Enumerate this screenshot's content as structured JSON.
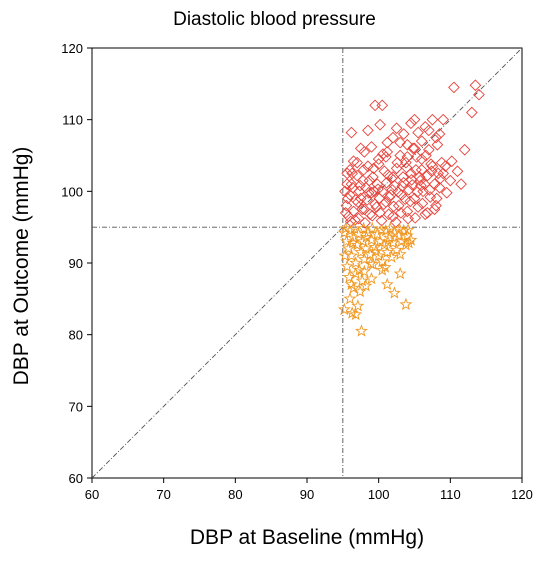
{
  "chart_data": {
    "type": "scatter",
    "title": "Diastolic blood pressure",
    "xlabel": "DBP at Baseline (mmHg)",
    "ylabel": "DBP at Outcome (mmHg)",
    "xlim": [
      60,
      120
    ],
    "ylim": [
      60,
      120
    ],
    "xticks": [
      "60",
      "70",
      "80",
      "90",
      "100",
      "110",
      "120"
    ],
    "yticks": [
      "60",
      "70",
      "80",
      "90",
      "100",
      "110",
      "120"
    ],
    "grid": false,
    "legend": "none",
    "reference_lines": {
      "vertical_x": 95,
      "horizontal_y": 95,
      "diagonal": "y = x"
    },
    "colors": {
      "above": "#e8413a",
      "below": "#f0961e",
      "reference": "#555555"
    },
    "series": [
      {
        "marker": "diamond",
        "color": "#e8413a",
        "points": [
          [
            95.5,
            98.0
          ],
          [
            95.8,
            96.5
          ],
          [
            96.0,
            99.5
          ],
          [
            96.2,
            101.0
          ],
          [
            96.5,
            97.2
          ],
          [
            96.0,
            103.0
          ],
          [
            97.0,
            104.0
          ],
          [
            95.3,
            100.0
          ],
          [
            95.6,
            102.5
          ],
          [
            96.8,
            98.8
          ],
          [
            97.2,
            96.2
          ],
          [
            97.5,
            99.0
          ],
          [
            97.8,
            101.5
          ],
          [
            98.0,
            97.5
          ],
          [
            98.2,
            100.5
          ],
          [
            98.5,
            103.5
          ],
          [
            98.8,
            96.8
          ],
          [
            99.0,
            99.8
          ],
          [
            99.2,
            102.0
          ],
          [
            99.5,
            98.2
          ],
          [
            99.8,
            101.0
          ],
          [
            100.0,
            104.5
          ],
          [
            100.2,
            97.0
          ],
          [
            100.5,
            100.0
          ],
          [
            100.8,
            102.8
          ],
          [
            101.0,
            98.5
          ],
          [
            101.2,
            105.5
          ],
          [
            101.5,
            99.2
          ],
          [
            101.8,
            101.8
          ],
          [
            102.0,
            96.5
          ],
          [
            102.2,
            100.8
          ],
          [
            102.5,
            103.2
          ],
          [
            102.8,
            98.0
          ],
          [
            103.0,
            105.0
          ],
          [
            103.2,
            99.5
          ],
          [
            103.5,
            101.2
          ],
          [
            103.8,
            104.0
          ],
          [
            104.0,
            97.2
          ],
          [
            104.2,
            100.2
          ],
          [
            104.5,
            102.5
          ],
          [
            104.8,
            106.0
          ],
          [
            105.0,
            99.0
          ],
          [
            105.2,
            103.0
          ],
          [
            105.5,
            97.8
          ],
          [
            105.8,
            101.5
          ],
          [
            106.0,
            104.5
          ],
          [
            106.2,
            100.0
          ],
          [
            106.5,
            96.8
          ],
          [
            106.8,
            102.2
          ],
          [
            107.0,
            105.8
          ],
          [
            107.2,
            99.2
          ],
          [
            107.5,
            103.5
          ],
          [
            107.8,
            101.0
          ],
          [
            108.0,
            98.0
          ],
          [
            108.2,
            106.5
          ],
          [
            108.5,
            100.5
          ],
          [
            108.8,
            104.0
          ],
          [
            109.0,
            102.5
          ],
          [
            109.5,
            99.8
          ],
          [
            110.0,
            101.5
          ],
          [
            96.2,
            108.2
          ],
          [
            97.5,
            106.0
          ],
          [
            98.5,
            108.5
          ],
          [
            99.5,
            112.0
          ],
          [
            100.2,
            109.3
          ],
          [
            100.5,
            112.0
          ],
          [
            101.2,
            106.8
          ],
          [
            102.0,
            107.5
          ],
          [
            102.5,
            108.8
          ],
          [
            103.5,
            108.0
          ],
          [
            104.0,
            106.5
          ],
          [
            104.5,
            109.5
          ],
          [
            105.0,
            110.0
          ],
          [
            105.5,
            108.2
          ],
          [
            106.0,
            107.0
          ],
          [
            106.5,
            109.0
          ],
          [
            107.0,
            108.5
          ],
          [
            107.5,
            110.0
          ],
          [
            108.0,
            107.5
          ],
          [
            108.5,
            108.0
          ],
          [
            109.0,
            110.0
          ],
          [
            110.5,
            114.5
          ],
          [
            111.0,
            102.8
          ],
          [
            112.0,
            105.8
          ],
          [
            113.0,
            111.0
          ],
          [
            113.5,
            114.8
          ],
          [
            114.0,
            113.5
          ],
          [
            96.5,
            104.2
          ],
          [
            97.0,
            102.2
          ],
          [
            98.0,
            105.5
          ],
          [
            99.0,
            106.2
          ],
          [
            100.0,
            103.8
          ],
          [
            101.0,
            104.8
          ],
          [
            102.0,
            102.0
          ],
          [
            103.0,
            106.8
          ],
          [
            104.0,
            104.8
          ],
          [
            105.0,
            106.0
          ],
          [
            106.0,
            103.0
          ],
          [
            95.4,
            97.0
          ],
          [
            95.7,
            99.0
          ],
          [
            96.1,
            95.8
          ],
          [
            96.4,
            100.5
          ],
          [
            96.7,
            96.0
          ],
          [
            97.1,
            98.5
          ],
          [
            97.4,
            100.8
          ],
          [
            97.7,
            97.5
          ],
          [
            98.1,
            95.6
          ],
          [
            98.4,
            98.8
          ],
          [
            98.7,
            101.5
          ],
          [
            99.1,
            96.6
          ],
          [
            99.4,
            100.0
          ],
          [
            99.7,
            97.8
          ],
          [
            100.1,
            99.0
          ],
          [
            100.4,
            95.9
          ],
          [
            100.7,
            98.2
          ],
          [
            101.1,
            101.2
          ],
          [
            101.4,
            96.8
          ],
          [
            101.7,
            99.5
          ],
          [
            102.1,
            97.9
          ],
          [
            102.4,
            95.7
          ],
          [
            102.7,
            99.9
          ],
          [
            103.1,
            97.0
          ],
          [
            103.4,
            102.0
          ],
          [
            103.7,
            98.9
          ],
          [
            104.1,
            96.2
          ],
          [
            104.4,
            98.6
          ],
          [
            104.7,
            100.9
          ],
          [
            105.1,
            96.3
          ],
          [
            105.4,
            99.9
          ],
          [
            105.7,
            102.0
          ],
          [
            106.1,
            98.3
          ],
          [
            106.4,
            101.0
          ],
          [
            106.8,
            97.0
          ],
          [
            107.1,
            100.2
          ],
          [
            107.4,
            102.8
          ],
          [
            107.8,
            97.5
          ],
          [
            108.1,
            99.0
          ],
          [
            108.6,
            101.8
          ],
          [
            95.6,
            101.0
          ],
          [
            96.3,
            102.5
          ],
          [
            97.3,
            100.0
          ],
          [
            97.9,
            103.0
          ],
          [
            98.6,
            99.8
          ],
          [
            99.3,
            103.2
          ],
          [
            99.9,
            100.3
          ],
          [
            100.6,
            105.2
          ],
          [
            101.3,
            102.3
          ],
          [
            101.9,
            100.2
          ],
          [
            102.6,
            104.0
          ],
          [
            103.3,
            100.7
          ],
          [
            103.9,
            103.3
          ],
          [
            104.6,
            101.6
          ],
          [
            105.3,
            104.8
          ],
          [
            105.9,
            100.8
          ],
          [
            106.6,
            105.0
          ],
          [
            107.3,
            103.8
          ],
          [
            108.3,
            102.5
          ],
          [
            109.3,
            103.5
          ],
          [
            110.2,
            104.2
          ],
          [
            111.5,
            101.0
          ]
        ]
      },
      {
        "marker": "star",
        "color": "#f0961e",
        "points": [
          [
            95.2,
            94.2
          ],
          [
            95.5,
            93.0
          ],
          [
            95.8,
            92.0
          ],
          [
            96.0,
            94.5
          ],
          [
            96.2,
            91.0
          ],
          [
            96.5,
            93.5
          ],
          [
            96.8,
            90.0
          ],
          [
            97.0,
            92.5
          ],
          [
            97.2,
            94.0
          ],
          [
            97.5,
            91.5
          ],
          [
            97.8,
            93.0
          ],
          [
            98.0,
            90.5
          ],
          [
            98.2,
            92.0
          ],
          [
            98.5,
            94.2
          ],
          [
            98.8,
            91.2
          ],
          [
            99.0,
            93.2
          ],
          [
            99.2,
            89.8
          ],
          [
            99.5,
            92.2
          ],
          [
            99.8,
            94.0
          ],
          [
            100.0,
            91.0
          ],
          [
            100.2,
            93.0
          ],
          [
            100.5,
            90.2
          ],
          [
            100.8,
            92.5
          ],
          [
            101.0,
            94.5
          ],
          [
            101.2,
            91.5
          ],
          [
            101.5,
            93.5
          ],
          [
            101.8,
            90.8
          ],
          [
            102.0,
            92.8
          ],
          [
            102.2,
            94.2
          ],
          [
            102.5,
            91.8
          ],
          [
            102.8,
            93.8
          ],
          [
            103.0,
            91.2
          ],
          [
            103.2,
            93.0
          ],
          [
            103.5,
            94.5
          ],
          [
            103.8,
            92.5
          ],
          [
            104.0,
            93.8
          ],
          [
            104.2,
            92.8
          ],
          [
            104.5,
            93.2
          ],
          [
            95.3,
            91.0
          ],
          [
            95.6,
            89.5
          ],
          [
            95.9,
            88.0
          ],
          [
            96.2,
            87.0
          ],
          [
            96.5,
            86.5
          ],
          [
            96.8,
            88.5
          ],
          [
            97.1,
            84.0
          ],
          [
            97.4,
            86.0
          ],
          [
            97.7,
            87.5
          ],
          [
            98.0,
            88.8
          ],
          [
            96.3,
            83.0
          ],
          [
            96.8,
            82.8
          ],
          [
            97.6,
            80.5
          ],
          [
            98.2,
            86.8
          ],
          [
            99.0,
            87.8
          ],
          [
            100.5,
            89.0
          ],
          [
            101.2,
            87.0
          ],
          [
            102.2,
            85.8
          ],
          [
            103.0,
            88.5
          ],
          [
            103.8,
            84.2
          ],
          [
            95.2,
            83.5
          ],
          [
            96.0,
            85.0
          ],
          [
            95.4,
            94.8
          ],
          [
            96.6,
            94.8
          ],
          [
            97.9,
            94.8
          ],
          [
            99.1,
            94.8
          ],
          [
            100.4,
            94.6
          ],
          [
            101.6,
            94.8
          ],
          [
            102.9,
            94.7
          ],
          [
            104.1,
            94.6
          ],
          [
            96.4,
            92.8
          ],
          [
            98.3,
            93.6
          ],
          [
            99.6,
            91.6
          ],
          [
            101.3,
            92.9
          ],
          [
            100.9,
            89.4
          ],
          [
            98.9,
            89.9
          ],
          [
            97.3,
            89.0
          ]
        ]
      }
    ]
  }
}
